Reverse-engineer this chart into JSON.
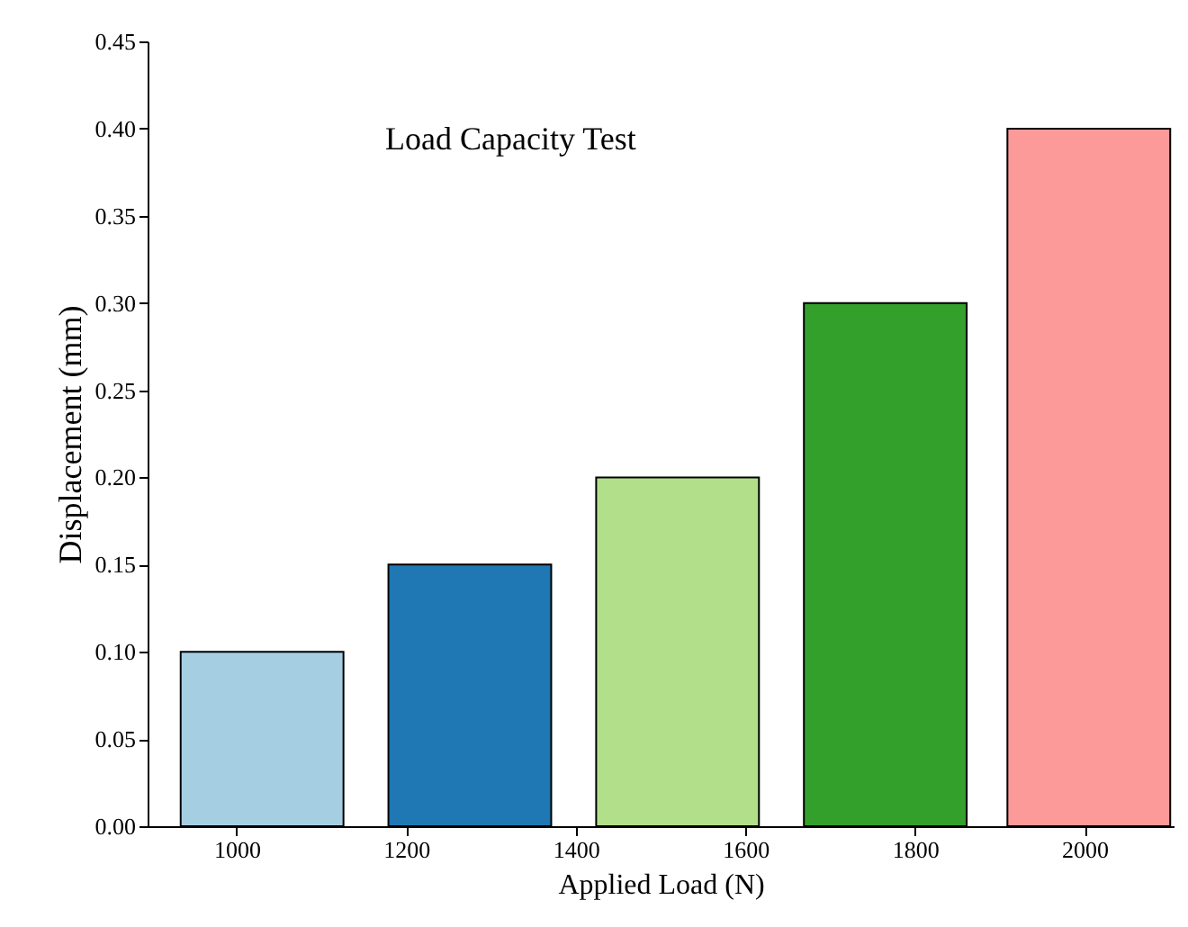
{
  "chart_data": {
    "type": "bar",
    "title": "Load Capacity Test",
    "xlabel": "Applied Load (N)",
    "ylabel": "Displacement (mm)",
    "x": [
      1030,
      1275,
      1520,
      1765,
      2005
    ],
    "values": [
      0.1,
      0.15,
      0.2,
      0.3,
      0.4
    ],
    "colors": [
      "#a6cee3",
      "#1f78b4",
      "#b2df8a",
      "#33a02c",
      "#fb9a99"
    ],
    "xlim": [
      895,
      2105
    ],
    "xticks": [
      1000,
      1200,
      1400,
      1600,
      1800,
      2000
    ],
    "ylim": [
      0,
      0.45
    ],
    "yticks": [
      {
        "value": 0,
        "label": "0.00"
      },
      0.05,
      {
        "value": 0.1,
        "label": "0.10"
      },
      0.15,
      {
        "value": 0.2,
        "label": "0.20"
      },
      0.25,
      {
        "value": 0.3,
        "label": "0.30"
      },
      0.35,
      {
        "value": 0.4,
        "label": "0.40"
      },
      0.45
    ],
    "grid": false
  }
}
